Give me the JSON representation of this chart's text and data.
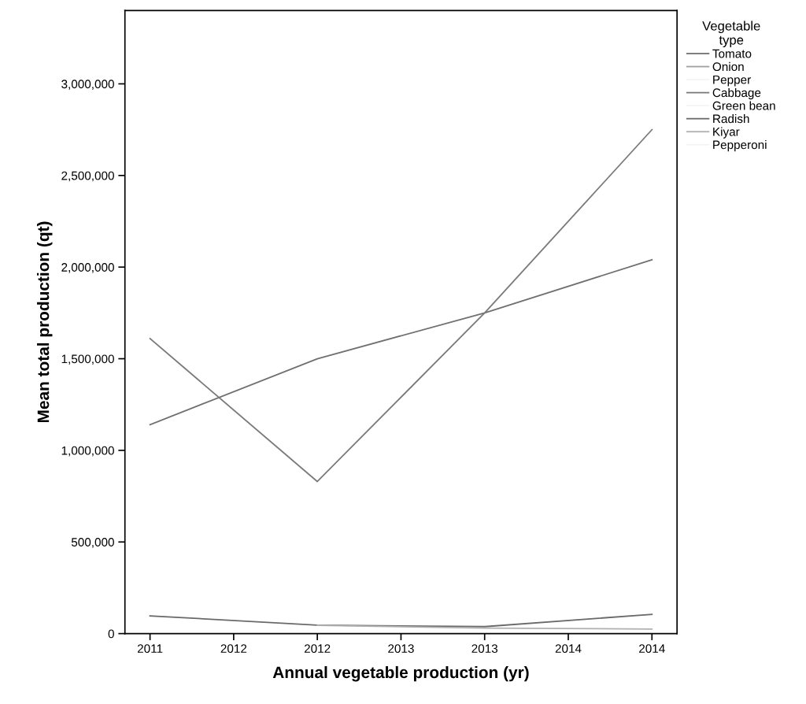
{
  "chart_data": {
    "type": "line",
    "xlabel": "Annual vegetable production (yr)",
    "ylabel": "Mean total production (qt)",
    "legend_title": "Vegetable\ntype",
    "categories": [
      "2011",
      "2012",
      "2012",
      "2013",
      "2013",
      "2014",
      "2014"
    ],
    "series": [
      {
        "name": "Tomato",
        "color": "#707070",
        "values": [
          1140000,
          null,
          1500000,
          null,
          1750000,
          null,
          2040000
        ]
      },
      {
        "name": "Onion",
        "color": "#a0a0a0",
        "values": [
          null,
          null,
          null,
          null,
          null,
          null,
          null
        ]
      },
      {
        "name": "Pepper",
        "color": "#f4f4f4",
        "values": [
          null,
          null,
          null,
          null,
          null,
          null,
          null
        ]
      },
      {
        "name": "Cabbage",
        "color": "#7a7a7a",
        "values": [
          1610000,
          null,
          830000,
          null,
          1750000,
          null,
          2750000
        ]
      },
      {
        "name": "Green bean",
        "color": "#f4f4f4",
        "values": [
          null,
          null,
          null,
          null,
          null,
          null,
          null
        ]
      },
      {
        "name": "Radish",
        "color": "#6a6a6a",
        "values": [
          97000,
          null,
          46000,
          null,
          38000,
          null,
          105000
        ]
      },
      {
        "name": "Kiyar",
        "color": "#b0b0b0",
        "values": [
          null,
          null,
          45000,
          null,
          30000,
          null,
          25000
        ]
      },
      {
        "name": "Pepperoni",
        "color": "#f4f4f4",
        "values": [
          null,
          null,
          null,
          null,
          null,
          null,
          null
        ]
      }
    ],
    "ylim": [
      0,
      3400000
    ],
    "yticks": [
      {
        "value": 0,
        "label": "0"
      },
      {
        "value": 500000,
        "label": "500,000"
      },
      {
        "value": 1000000,
        "label": "1,000,000"
      },
      {
        "value": 1500000,
        "label": "1,500,000"
      },
      {
        "value": 2000000,
        "label": "2,000,000"
      },
      {
        "value": 2500000,
        "label": "2,500,000"
      },
      {
        "value": 3000000,
        "label": "3,000,000"
      }
    ],
    "legend": "right",
    "grid": false,
    "marker": "none",
    "line_style": "solid"
  }
}
